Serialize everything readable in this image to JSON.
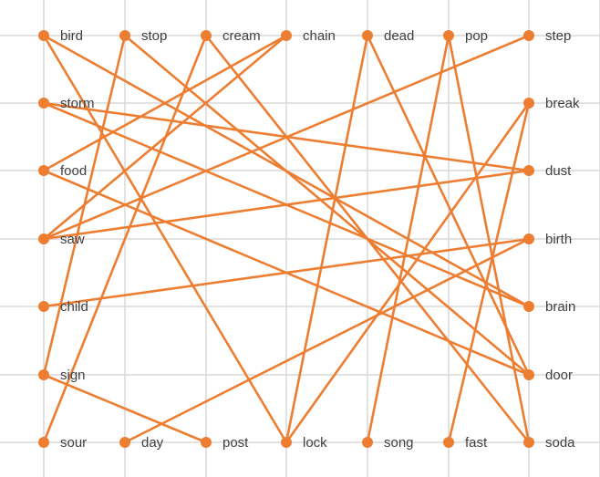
{
  "nodes": [
    {
      "label": "bird"
    },
    {
      "label": "stop"
    },
    {
      "label": "cream"
    },
    {
      "label": "chain"
    },
    {
      "label": "dead"
    },
    {
      "label": "pop"
    },
    {
      "label": "step"
    },
    {
      "label": "storm"
    },
    {
      "label": "food"
    },
    {
      "label": "saw"
    },
    {
      "label": "child"
    },
    {
      "label": "sign"
    },
    {
      "label": "sour"
    },
    {
      "label": "day"
    },
    {
      "label": "post"
    },
    {
      "label": "lock"
    },
    {
      "label": "song"
    },
    {
      "label": "fast"
    },
    {
      "label": "soda"
    },
    {
      "label": "break"
    },
    {
      "label": "dust"
    },
    {
      "label": "birth"
    },
    {
      "label": "brain"
    },
    {
      "label": "door"
    }
  ],
  "edges": [
    [
      0,
      15
    ],
    [
      0,
      22
    ],
    [
      1,
      11
    ],
    [
      1,
      23
    ],
    [
      2,
      12
    ],
    [
      2,
      18
    ],
    [
      3,
      8
    ],
    [
      3,
      9
    ],
    [
      4,
      15
    ],
    [
      4,
      23
    ],
    [
      5,
      16
    ],
    [
      5,
      18
    ],
    [
      6,
      9
    ],
    [
      7,
      20
    ],
    [
      7,
      22
    ],
    [
      8,
      23
    ],
    [
      9,
      20
    ],
    [
      10,
      21
    ],
    [
      11,
      14
    ],
    [
      13,
      21
    ],
    [
      15,
      19
    ],
    [
      17,
      19
    ]
  ]
}
